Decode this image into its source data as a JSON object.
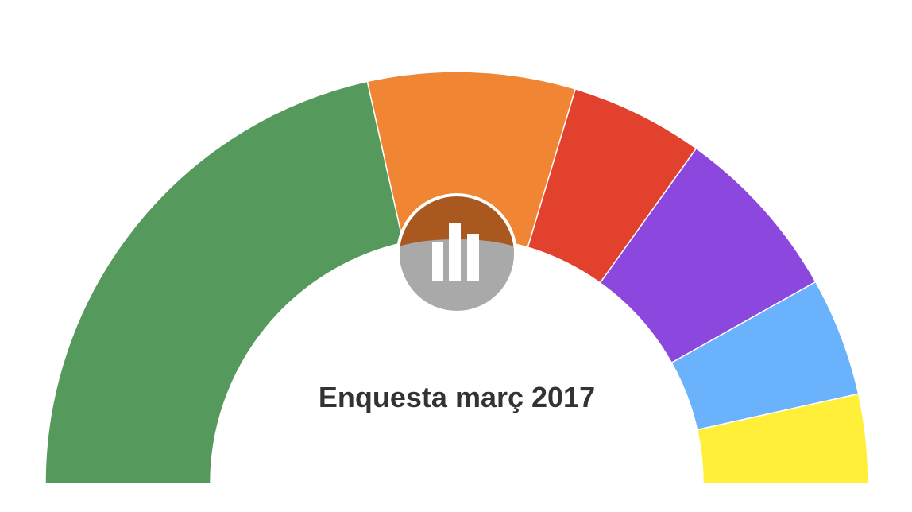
{
  "chart_data": {
    "type": "pie",
    "subtype": "semicircle-donut",
    "title": "Enquesta març 2017",
    "categories": [
      "",
      "",
      "",
      "",
      "",
      ""
    ],
    "values": [
      37,
      14,
      9,
      12,
      8,
      6
    ],
    "colors": [
      "#56995C",
      "#F08533",
      "#E2412E",
      "#8C47DE",
      "#6AB2FC",
      "#FFEF38"
    ],
    "legend": "none"
  },
  "logo": {
    "icon": "bar-chart-icon",
    "top_color": "#A95920",
    "bottom_color": "#A9A9A9"
  }
}
